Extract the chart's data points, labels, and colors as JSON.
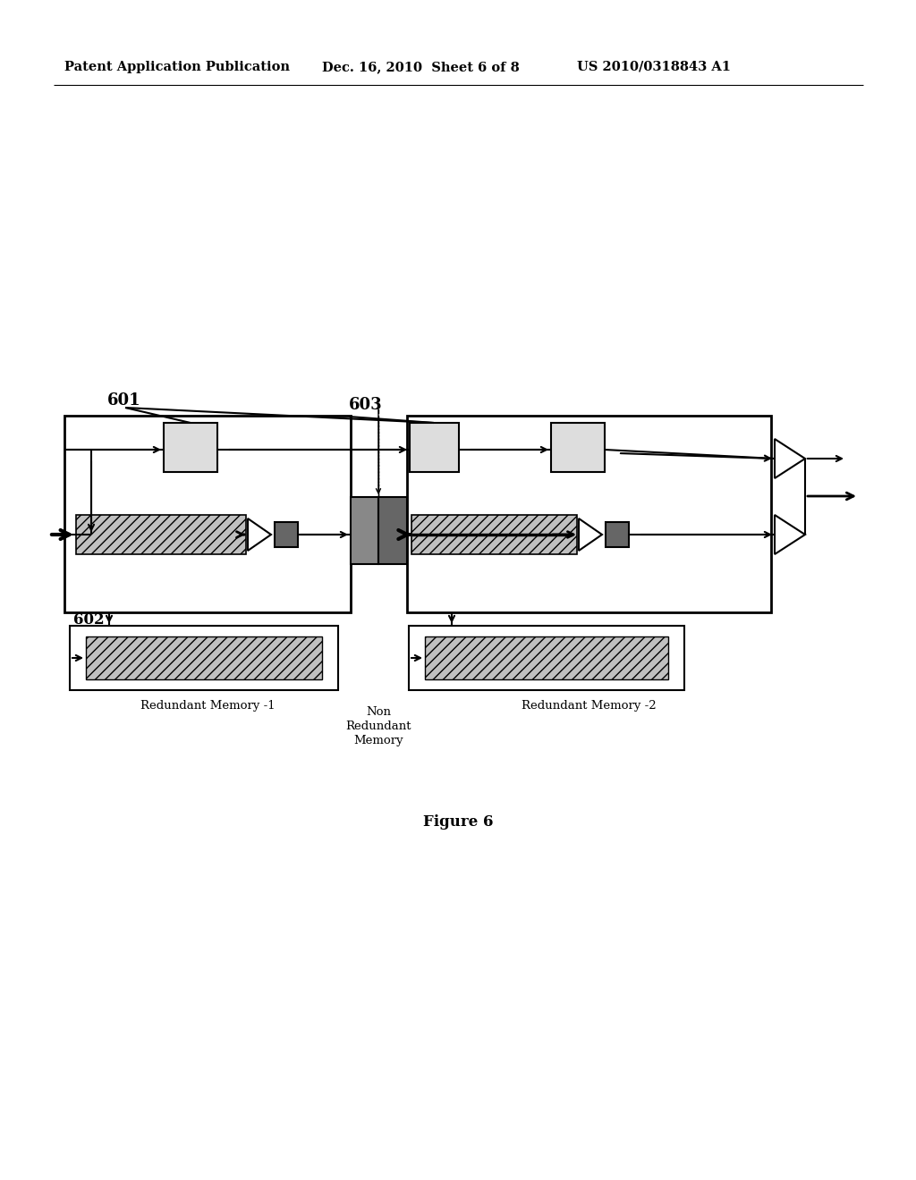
{
  "bg_color": "#ffffff",
  "header_left": "Patent Application Publication",
  "header_mid": "Dec. 16, 2010  Sheet 6 of 8",
  "header_right": "US 2010/0318843 A1",
  "figure_label": "Figure 6",
  "label_601": "601",
  "label_602": "602",
  "label_603": "603",
  "label_redundant1": "Redundant Memory -1",
  "label_nonredundant": "Non\nRedundant\nMemory",
  "label_redundant2": "Redundant Memory -2",
  "fig_width": 10.24,
  "fig_height": 13.2,
  "dpi": 100,
  "hatch_fc": "#c0c0c0",
  "dark_fc": "#666666",
  "med_fc": "#888888"
}
